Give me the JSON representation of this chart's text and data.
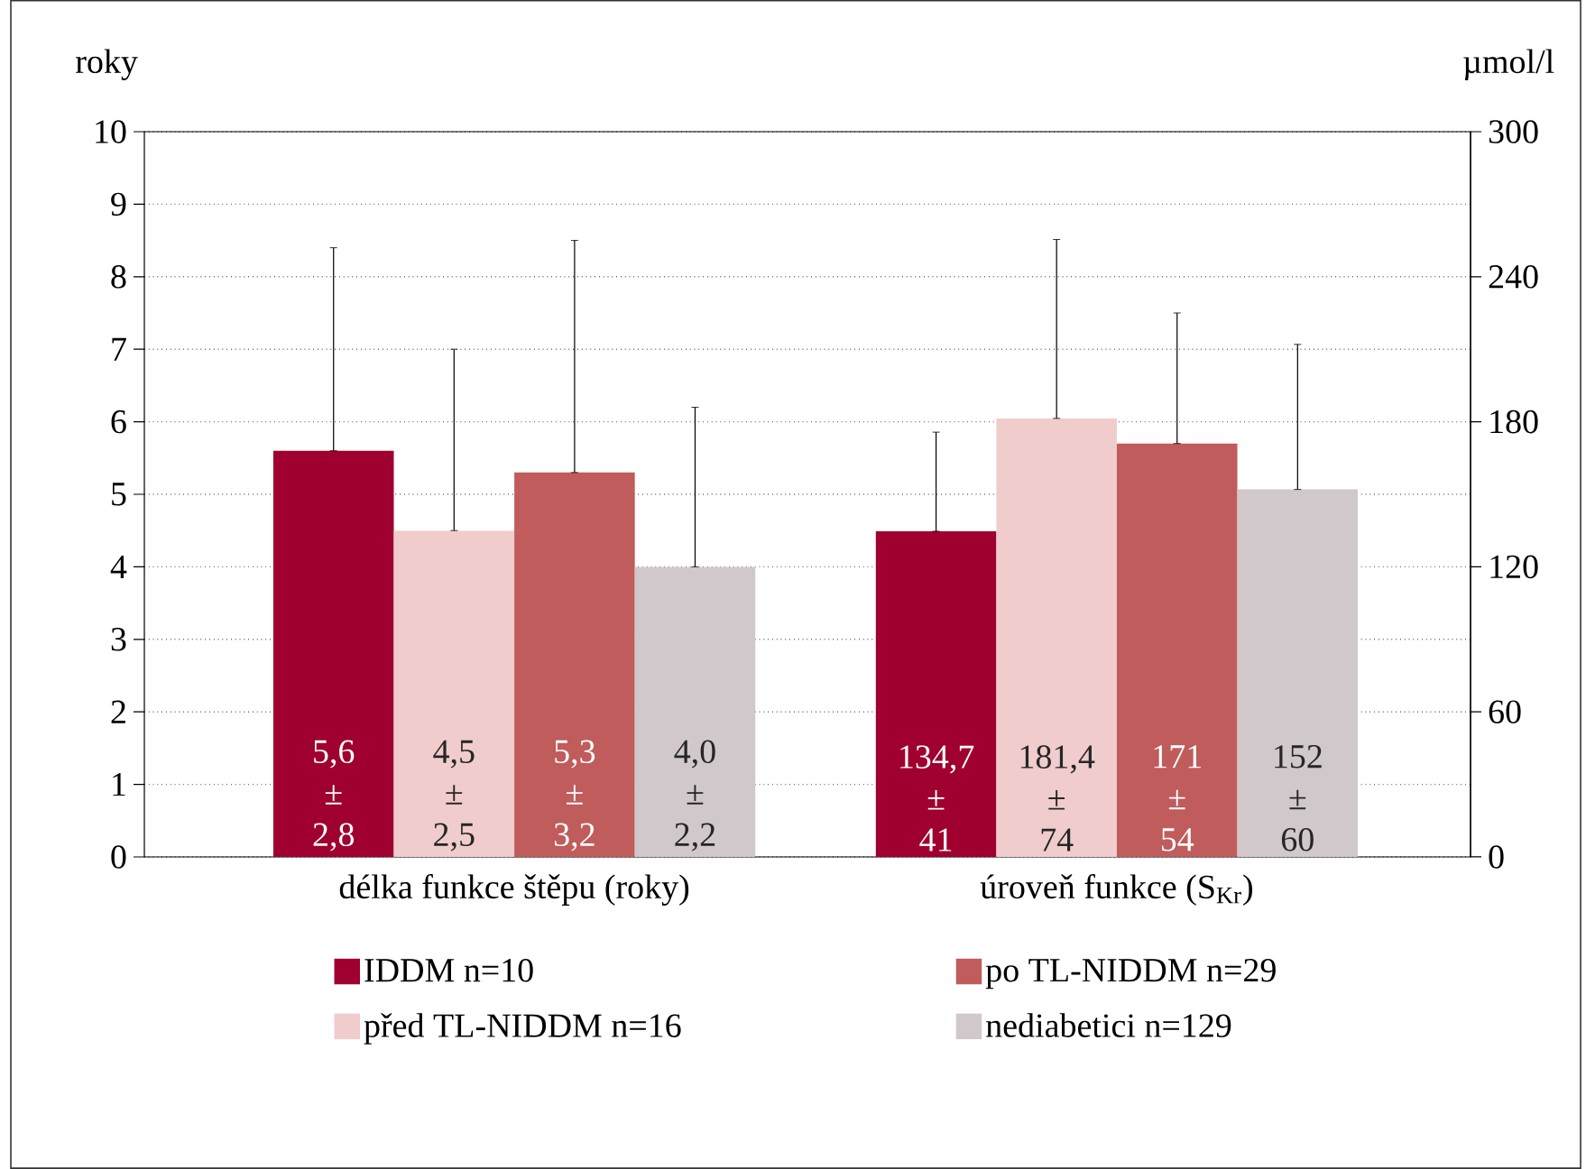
{
  "chart_data": {
    "type": "bar",
    "ylabel": "roky",
    "y2label": "µmol/l",
    "categories": [
      "délka funkce štěpu (roky)",
      "úroveň funkce (S$_{Kr}$)"
    ],
    "series": [
      {
        "name": "IDDM n=10",
        "color": "#a0002f",
        "values": [
          5.6,
          null
        ],
        "errors": [
          [
            5.6,
            8.4
          ],
          null
        ],
        "value_labels": [
          "5,6 ± 2,8",
          null
        ]
      },
      {
        "name": "před TL-NIDDM n=16",
        "color": "#f0cccc",
        "values": [
          4.5,
          null
        ],
        "errors": [
          [
            4.5,
            7.0
          ],
          null
        ],
        "value_labels": [
          "4,5 ± 2,5",
          null
        ]
      },
      {
        "name": "po TL-NIDDM n=29",
        "color": "#c05c5c",
        "values": [
          5.3,
          null
        ],
        "errors": [
          [
            5.3,
            8.5
          ],
          null
        ],
        "value_labels": [
          "5,3 ± 3,2",
          null
        ]
      },
      {
        "name": "nediabetici n=129",
        "color": "#d0c8cb",
        "values": [
          4.0,
          null
        ],
        "errors": [
          [
            4.0,
            6.2
          ],
          null
        ],
        "value_labels": [
          "4,0 ± 2,2",
          null
        ]
      },
      {
        "color": "#a0002f",
        "axis": "y2",
        "values": [
          null,
          134.7
        ],
        "errors": [
          null,
          [
            134.7,
            175.7
          ]
        ],
        "value_labels": [
          null,
          "134,7 ± 41"
        ]
      },
      {
        "color": "#f0cccc",
        "axis": "y2",
        "values": [
          null,
          181.4
        ],
        "errors": [
          null,
          [
            181.4,
            255.4
          ]
        ],
        "value_labels": [
          null,
          "181,4 ± 74"
        ]
      },
      {
        "color": "#c05c5c",
        "axis": "y2",
        "values": [
          null,
          171
        ],
        "errors": [
          null,
          [
            171,
            225
          ]
        ],
        "value_labels": [
          null,
          "171 ± 54"
        ]
      },
      {
        "color": "#d0c8cb",
        "axis": "y2",
        "values": [
          null,
          152
        ],
        "errors": [
          null,
          [
            152,
            212
          ]
        ],
        "value_labels": [
          null,
          "152 ± 60"
        ]
      }
    ],
    "ylim": [
      0,
      10
    ],
    "yticks": [
      0,
      1,
      2,
      3,
      4,
      5,
      6,
      7,
      8,
      9,
      10
    ],
    "y2lim": [
      0,
      300
    ],
    "y2ticks": [
      0,
      60,
      120,
      180,
      240,
      300
    ],
    "grid": "y",
    "legend": "bottom"
  }
}
